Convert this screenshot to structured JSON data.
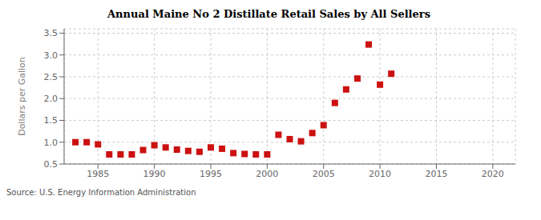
{
  "chart_data": {
    "type": "scatter",
    "title": "Annual Maine No 2 Distillate Retail Sales by All Sellers",
    "ylabel": "Dollars per Gallon",
    "annotations": [
      "Source: U.S. Energy Information Administration"
    ],
    "x": [
      1983,
      1984,
      1985,
      1986,
      1987,
      1988,
      1989,
      1990,
      1991,
      1992,
      1993,
      1994,
      1995,
      1996,
      1997,
      1998,
      1999,
      2000,
      2001,
      2002,
      2003,
      2004,
      2005,
      2006,
      2007,
      2008,
      2009,
      2010,
      2011
    ],
    "values": [
      1.0,
      1.0,
      0.95,
      0.72,
      0.72,
      0.72,
      0.82,
      0.93,
      0.88,
      0.83,
      0.8,
      0.78,
      0.88,
      0.85,
      0.75,
      0.73,
      0.72,
      0.72,
      1.17,
      1.07,
      1.02,
      1.21,
      1.39,
      1.9,
      2.21,
      2.46,
      3.24,
      2.32,
      2.57
    ],
    "color": "#cc1111",
    "marker": "square",
    "xlim": [
      1982,
      2022
    ],
    "xticks": [
      1985,
      1990,
      1995,
      2000,
      2005,
      2010,
      2015,
      2020
    ],
    "ylim": [
      0.5,
      3.6
    ],
    "yticks": [
      0.5,
      {
        "value": 1,
        "label": "1.0"
      },
      1.5,
      {
        "value": 2,
        "label": "2.0"
      },
      2.5,
      {
        "value": 3,
        "label": "3.0"
      },
      3.5
    ],
    "grid": true
  }
}
